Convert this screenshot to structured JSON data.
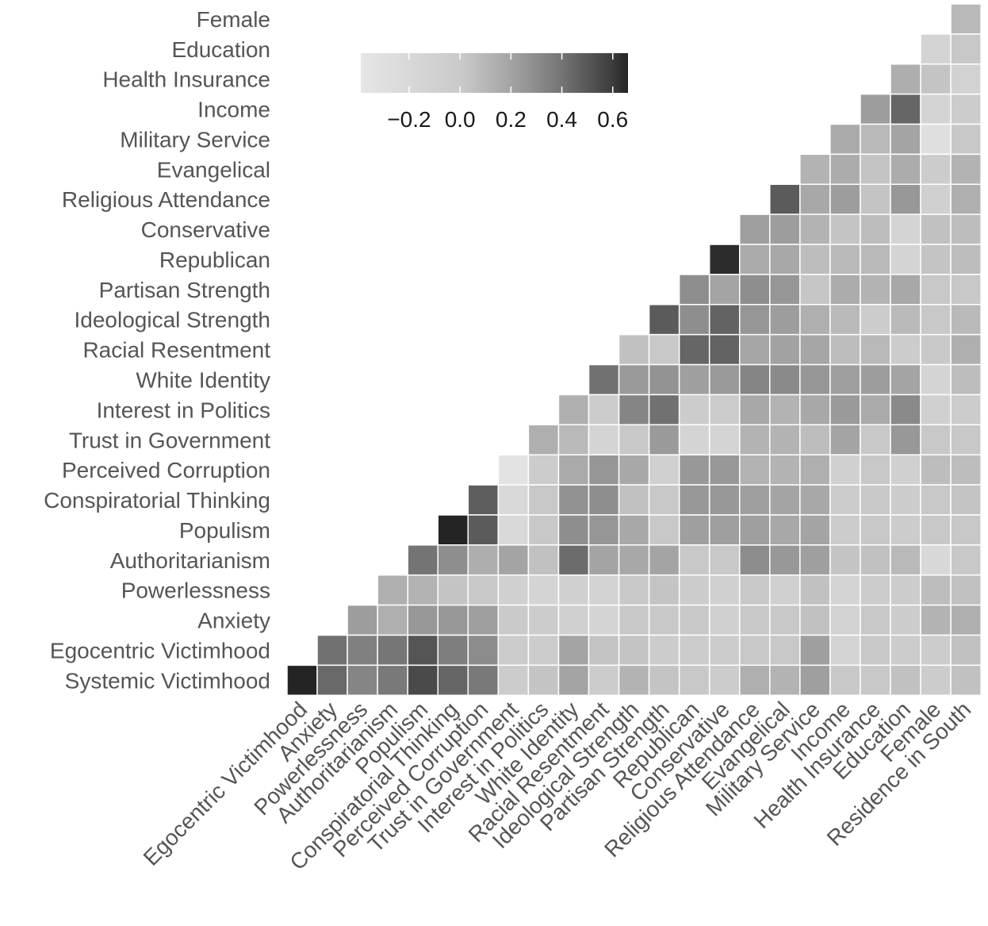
{
  "chart_data": {
    "type": "heatmap",
    "title": "",
    "row_labels": [
      "Female",
      "Education",
      "Health Insurance",
      "Income",
      "Military Service",
      "Evangelical",
      "Religious Attendance",
      "Conservative",
      "Republican",
      "Partisan Strength",
      "Ideological Strength",
      "Racial Resentment",
      "White Identity",
      "Interest in Politics",
      "Trust in Government",
      "Perceived Corruption",
      "Conspiratorial Thinking",
      "Populism",
      "Authoritarianism",
      "Powerlessness",
      "Anxiety",
      "Egocentric Victimhood",
      "Systemic Victimhood"
    ],
    "col_labels": [
      "Egocentric Victimhood",
      "Anxiety",
      "Powerlessness",
      "Authoritarianism",
      "Populism",
      "Conspiratorial Thinking",
      "Perceived Corruption",
      "Trust in Government",
      "Interest in Politics",
      "White Identity",
      "Racial Resentment",
      "Ideological Strength",
      "Partisan Strength",
      "Republican",
      "Conservative",
      "Religious Attendance",
      "Evangelical",
      "Military Service",
      "Income",
      "Health Insurance",
      "Education",
      "Female",
      "Residence in South"
    ],
    "layout_note": "lower triangle; each row's values align to the rightmost columns",
    "values": [
      [
        0.09
      ],
      [
        -0.14,
        0.01
      ],
      [
        0.15,
        0.03,
        -0.11
      ],
      [
        0.23,
        0.45,
        -0.14,
        -0.03
      ],
      [
        0.17,
        0.09,
        0.2,
        -0.3,
        0.01
      ],
      [
        0.12,
        0.16,
        0.03,
        0.16,
        -0.03,
        0.12
      ],
      [
        0.49,
        0.18,
        0.23,
        0.03,
        0.25,
        -0.09,
        0.14
      ],
      [
        0.22,
        0.23,
        0.12,
        0.03,
        0.07,
        -0.14,
        0.05,
        0.07
      ],
      [
        0.64,
        0.17,
        0.18,
        0.07,
        0.09,
        0.09,
        -0.14,
        0.03,
        0.07
      ],
      [
        0.29,
        0.2,
        0.29,
        0.26,
        0.02,
        0.16,
        0.12,
        0.18,
        0.01,
        0.01
      ],
      [
        0.49,
        0.29,
        0.46,
        0.26,
        0.23,
        0.14,
        0.09,
        -0.03,
        0.09,
        0.01,
        0.09
      ],
      [
        0.05,
        0.01,
        0.45,
        0.46,
        0.19,
        0.21,
        0.19,
        0.07,
        0.09,
        -0.03,
        0.01,
        0.14
      ],
      [
        0.41,
        0.24,
        0.27,
        0.22,
        0.24,
        0.33,
        0.31,
        0.26,
        0.22,
        0.23,
        0.2,
        -0.14,
        0.07
      ],
      [
        0.14,
        -0.03,
        0.33,
        0.41,
        -0.03,
        -0.03,
        0.18,
        0.12,
        0.18,
        0.24,
        0.17,
        0.31,
        -0.09,
        -0.03
      ],
      [
        0.14,
        0.09,
        -0.14,
        0.01,
        0.24,
        -0.14,
        -0.14,
        0.12,
        0.12,
        0.07,
        0.2,
        0.01,
        0.25,
        0.01,
        0.01
      ],
      [
        -0.35,
        -0.03,
        0.17,
        0.26,
        0.18,
        -0.09,
        0.25,
        0.25,
        0.12,
        0.12,
        0.14,
        -0.09,
        0.01,
        -0.09,
        0.07,
        0.07
      ],
      [
        0.48,
        -0.22,
        0.01,
        0.28,
        0.29,
        0.05,
        0.01,
        0.25,
        0.25,
        0.22,
        0.2,
        0.18,
        -0.03,
        0.01,
        -0.03,
        0.01,
        0.03
      ],
      [
        0.66,
        0.49,
        -0.22,
        0.01,
        0.29,
        0.26,
        0.18,
        0.01,
        0.22,
        0.22,
        0.22,
        0.18,
        0.2,
        -0.03,
        0.01,
        -0.03,
        0.01,
        0.01
      ],
      [
        0.4,
        0.29,
        0.15,
        0.2,
        0.05,
        0.43,
        0.2,
        0.18,
        0.2,
        0.01,
        0.01,
        0.3,
        0.25,
        0.22,
        0.03,
        0.05,
        0.09,
        -0.2,
        0.01
      ],
      [
        0.14,
        0.12,
        0.03,
        0.01,
        -0.09,
        -0.14,
        -0.09,
        -0.11,
        0.01,
        0.03,
        -0.03,
        -0.09,
        0.01,
        -0.09,
        0.05,
        -0.14,
        -0.03,
        -0.03,
        0.07,
        0.05
      ],
      [
        0.23,
        0.14,
        0.25,
        0.25,
        0.22,
        0.0,
        -0.03,
        -0.09,
        -0.14,
        0.01,
        0.01,
        0.01,
        -0.09,
        0.01,
        0.01,
        0.05,
        -0.11,
        0.01,
        -0.03,
        0.12,
        0.14
      ],
      [
        0.41,
        0.35,
        0.39,
        0.51,
        0.36,
        0.3,
        -0.03,
        -0.03,
        0.2,
        0.03,
        0.03,
        -0.03,
        -0.03,
        -0.03,
        0.01,
        0.01,
        0.22,
        -0.14,
        0.01,
        -0.03,
        -0.03,
        0.05
      ],
      [
        0.66,
        0.44,
        0.33,
        0.38,
        0.55,
        0.45,
        0.38,
        -0.03,
        0.03,
        0.2,
        -0.03,
        0.12,
        0.03,
        0.01,
        -0.03,
        0.14,
        0.12,
        0.22,
        0.01,
        0.01,
        0.05,
        -0.03,
        0.05
      ]
    ],
    "colorbar": {
      "range": [
        -0.39,
        0.66
      ],
      "ticks": [
        -0.2,
        0.0,
        0.2,
        0.4,
        0.6
      ],
      "tick_labels": [
        "−0.2",
        "0.0",
        "0.2",
        "0.4",
        "0.6"
      ],
      "placement": "top-left inside plot",
      "color_stops": [
        [
          -0.39,
          "#e6e6e6"
        ],
        [
          -0.2,
          "#d8d8d8"
        ],
        [
          0.0,
          "#cacaca"
        ],
        [
          0.2,
          "#a4a4a4"
        ],
        [
          0.4,
          "#747474"
        ],
        [
          0.6,
          "#3c3c3c"
        ],
        [
          0.66,
          "#242424"
        ]
      ]
    },
    "grid_line_color": "#ffffff"
  }
}
